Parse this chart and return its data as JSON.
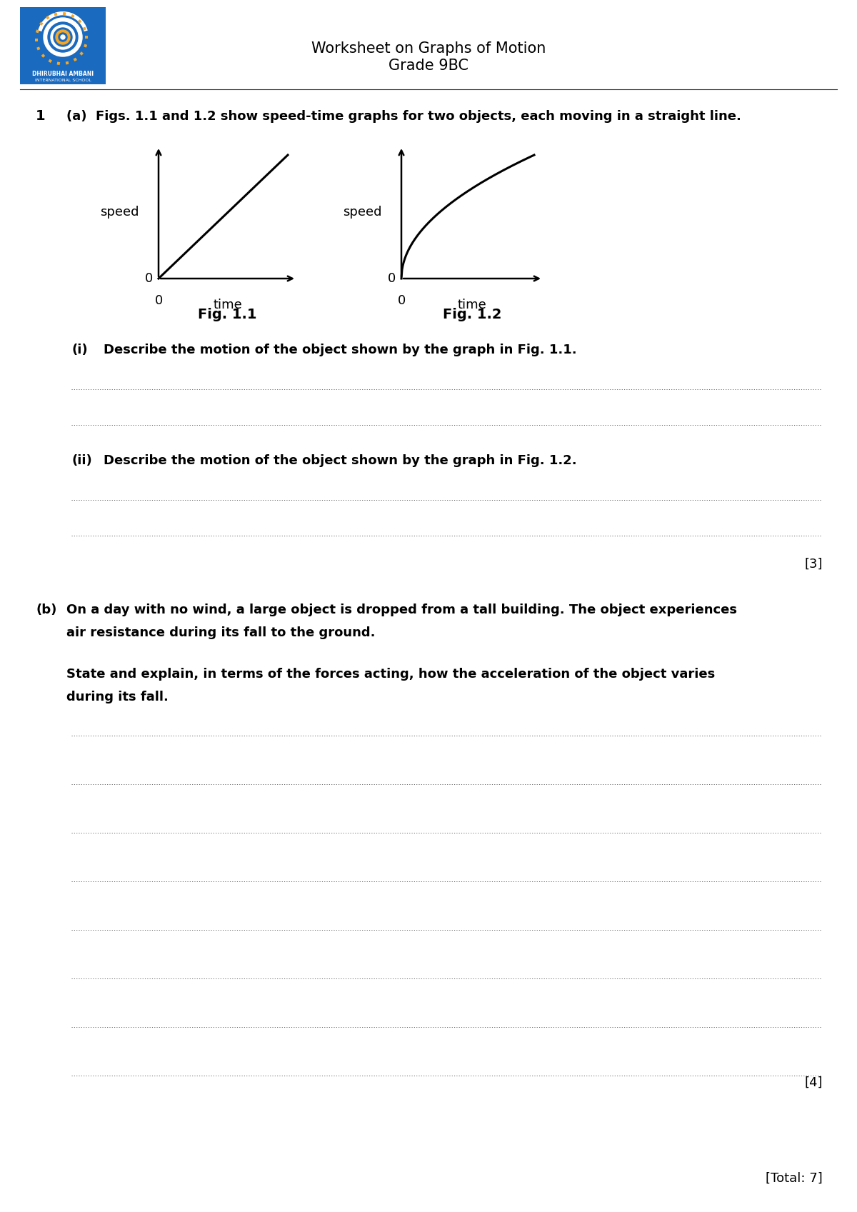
{
  "title_line1": "Worksheet on Graphs of Motion",
  "title_line2": "Grade 9BC",
  "bg_color": "#ffffff",
  "text_color": "#000000",
  "q1_num": "1",
  "q1a_text": "(a)  Figs. 1.1 and 1.2 show speed-time graphs for two objects, each moving in a straight line.",
  "fig11_caption": "Fig. 1.1",
  "fig12_caption": "Fig. 1.2",
  "q1i_label": "(i)",
  "q1i_text": "Describe the motion of the object shown by the graph in Fig. 1.1.",
  "q1ii_label": "(ii)",
  "q1ii_text": "Describe the motion of the object shown by the graph in Fig. 1.2.",
  "mark3": "[3]",
  "q1b_label": "(b)",
  "q1b_text1a": "On a day with no wind, a large object is dropped from a tall building. The object experiences",
  "q1b_text1b": "air resistance during its fall to the ground.",
  "q1b_text2a": "State and explain, in terms of the forces acting, how the acceleration of the object varies",
  "q1b_text2b": "during its fall.",
  "mark4": "[4]",
  "total": "[Total: 7]",
  "logo_bg": "#1a6abf",
  "logo_ring_outer": "#ffffff",
  "logo_ring_mid": "#1a6abf",
  "logo_ring_inner": "#ffffff",
  "logo_center": "#f5a623",
  "logo_text1": "DHIRUBHAI AMBANI",
  "logo_text2": "INTERNATIONAL SCHOOL"
}
